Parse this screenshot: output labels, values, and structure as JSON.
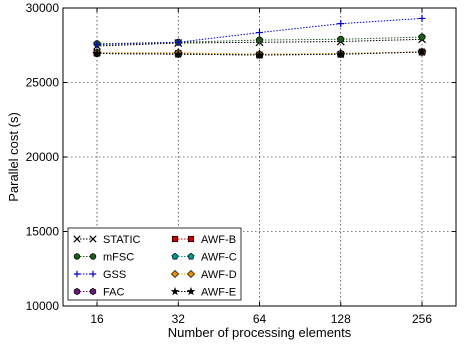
{
  "chart_data": {
    "type": "line",
    "xlabel": "Number of processing elements",
    "ylabel": "Parallel cost (s)",
    "categories": [
      "16",
      "32",
      "64",
      "128",
      "256"
    ],
    "ylim": [
      10000,
      30000
    ],
    "yticks": [
      10000,
      15000,
      20000,
      25000,
      30000
    ],
    "grid": true,
    "legend_position": "lower-left",
    "series": [
      {
        "name": "STATIC",
        "color": "#000000",
        "marker": "x",
        "values": [
          27450,
          27650,
          27700,
          27750,
          27900
        ]
      },
      {
        "name": "mFSC",
        "color": "#1a5e1a",
        "marker": "circle",
        "values": [
          27600,
          27700,
          27850,
          27900,
          28050
        ]
      },
      {
        "name": "GSS",
        "color": "#0000cc",
        "marker": "plus",
        "values": [
          27550,
          27700,
          28350,
          28950,
          29300
        ]
      },
      {
        "name": "FAC",
        "color": "#6a1b7a",
        "marker": "hexagon",
        "values": [
          26950,
          26900,
          26850,
          26900,
          27050
        ]
      },
      {
        "name": "AWF-B",
        "color": "#cc0000",
        "marker": "square",
        "values": [
          27000,
          26950,
          26850,
          26900,
          27050
        ]
      },
      {
        "name": "AWF-C",
        "color": "#009999",
        "marker": "pentagon",
        "values": [
          26950,
          26900,
          26850,
          26900,
          27050
        ]
      },
      {
        "name": "AWF-D",
        "color": "#e69500",
        "marker": "diamond",
        "values": [
          27000,
          27000,
          26900,
          26950,
          27050
        ]
      },
      {
        "name": "AWF-E",
        "color": "#000000",
        "marker": "star",
        "values": [
          26950,
          26900,
          26850,
          26900,
          27050
        ]
      }
    ]
  }
}
